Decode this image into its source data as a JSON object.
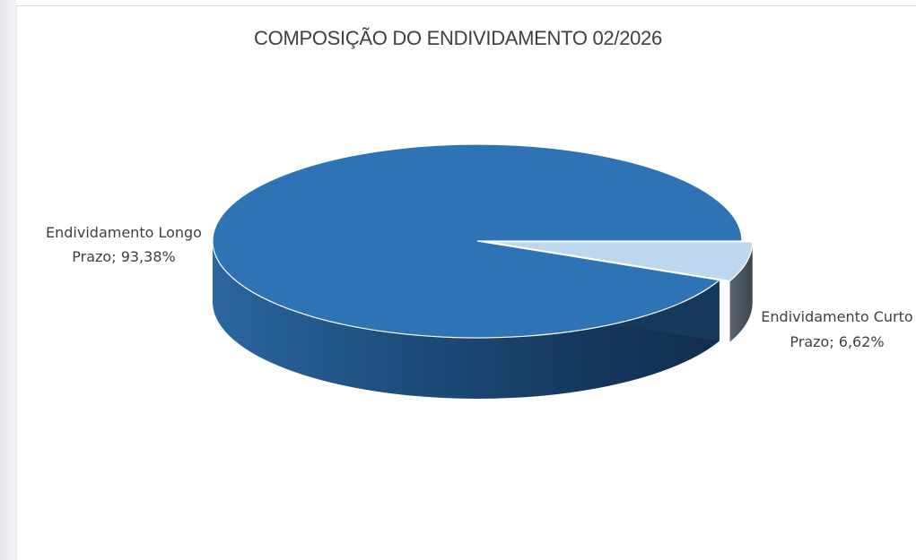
{
  "chart_data": {
    "type": "pie",
    "title": "COMPOSIÇÃO DO ENDIVIDAMENTO 02/2026",
    "style": "3d",
    "slices": [
      {
        "label": "Endividamento Longo Prazo",
        "value": 93.38,
        "data_label_line1": "Endividamento Longo",
        "data_label_line2": "Prazo; 93,38%",
        "color": "#2E74B5"
      },
      {
        "label": "Endividamento Curto Prazo",
        "value": 6.62,
        "data_label_line1": "Endividamento Curto",
        "data_label_line2": "Prazo; 6,62%",
        "color": "#BDD7EE",
        "exploded": true
      }
    ],
    "legend": "none"
  }
}
